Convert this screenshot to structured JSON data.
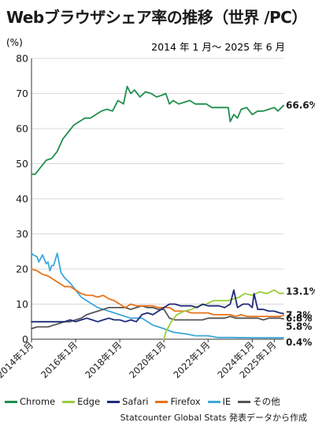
{
  "title": "Webブラウザシェア率の推移（世界 /PC）",
  "source": "Statcounter Global Stats 発表データから作成",
  "chart_data": {
    "type": "line",
    "title": "Webブラウザシェア率の推移（世界 /PC）",
    "subtitle": "2014 年 1 月〜 2025 年 6 月",
    "ylabel": "(%)",
    "ylim": [
      0,
      80
    ],
    "yticks": [
      "0",
      "10",
      "20",
      "30",
      "40",
      "50",
      "60",
      "70",
      "80"
    ],
    "xlim": [
      "2014-01",
      "2025-06"
    ],
    "xticks": [
      {
        "x": "2014-01",
        "label": "2014年1月"
      },
      {
        "x": "2016-01",
        "label": "2016年1月"
      },
      {
        "x": "2018-01",
        "label": "2018年1月"
      },
      {
        "x": "2020-01",
        "label": "2020年1月"
      },
      {
        "x": "2022-01",
        "label": "2022年1月"
      },
      {
        "x": "2024-01",
        "label": "2024年1月"
      },
      {
        "x": "2025-01",
        "label": "2025年1月"
      }
    ],
    "grid": "horizontal",
    "legend": "bottom",
    "series": [
      {
        "name": "Chrome",
        "color": "#1f8f4e",
        "end_label": "66.6%",
        "points": [
          [
            "2014-01",
            47
          ],
          [
            "2014-03",
            47
          ],
          [
            "2014-06",
            49
          ],
          [
            "2014-09",
            51
          ],
          [
            "2014-12",
            51.5
          ],
          [
            "2015-03",
            53.5
          ],
          [
            "2015-06",
            57
          ],
          [
            "2015-09",
            59
          ],
          [
            "2015-12",
            61
          ],
          [
            "2016-03",
            62
          ],
          [
            "2016-06",
            63
          ],
          [
            "2016-09",
            63
          ],
          [
            "2016-12",
            64
          ],
          [
            "2017-03",
            65
          ],
          [
            "2017-06",
            65.5
          ],
          [
            "2017-09",
            65
          ],
          [
            "2017-12",
            68
          ],
          [
            "2018-03",
            67
          ],
          [
            "2018-05",
            72
          ],
          [
            "2018-07",
            70
          ],
          [
            "2018-09",
            71
          ],
          [
            "2018-12",
            69
          ],
          [
            "2019-03",
            70.5
          ],
          [
            "2019-06",
            70
          ],
          [
            "2019-09",
            69
          ],
          [
            "2019-12",
            69.5
          ],
          [
            "2020-02",
            70
          ],
          [
            "2020-04",
            67
          ],
          [
            "2020-06",
            68
          ],
          [
            "2020-09",
            67
          ],
          [
            "2020-12",
            67.5
          ],
          [
            "2021-03",
            68
          ],
          [
            "2021-06",
            67
          ],
          [
            "2021-09",
            67
          ],
          [
            "2021-12",
            67
          ],
          [
            "2022-03",
            66
          ],
          [
            "2022-06",
            66
          ],
          [
            "2022-09",
            66
          ],
          [
            "2022-12",
            66
          ],
          [
            "2023-01",
            62
          ],
          [
            "2023-03",
            64
          ],
          [
            "2023-05",
            63
          ],
          [
            "2023-07",
            65.5
          ],
          [
            "2023-10",
            66
          ],
          [
            "2024-01",
            64
          ],
          [
            "2024-04",
            65
          ],
          [
            "2024-07",
            65
          ],
          [
            "2024-10",
            65.5
          ],
          [
            "2025-01",
            66
          ],
          [
            "2025-03",
            65
          ],
          [
            "2025-06",
            66.6
          ]
        ]
      },
      {
        "name": "Edge",
        "color": "#9ccc3c",
        "end_label": "13.1%",
        "points": [
          [
            "2020-01",
            0
          ],
          [
            "2020-02",
            2
          ],
          [
            "2020-05",
            5
          ],
          [
            "2020-08",
            7
          ],
          [
            "2020-12",
            8
          ],
          [
            "2021-04",
            8.5
          ],
          [
            "2021-08",
            9.5
          ],
          [
            "2021-12",
            10
          ],
          [
            "2022-04",
            11
          ],
          [
            "2022-09",
            11
          ],
          [
            "2022-12",
            11
          ],
          [
            "2023-03",
            11.5
          ],
          [
            "2023-06",
            12
          ],
          [
            "2023-09",
            13
          ],
          [
            "2024-01",
            12.5
          ],
          [
            "2024-05",
            13.5
          ],
          [
            "2024-09",
            13
          ],
          [
            "2025-01",
            14
          ],
          [
            "2025-04",
            13
          ],
          [
            "2025-06",
            13.1
          ]
        ]
      },
      {
        "name": "Safari",
        "color": "#1f2a7a",
        "end_label": "7.3%",
        "points": [
          [
            "2014-01",
            5
          ],
          [
            "2014-04",
            5
          ],
          [
            "2014-07",
            5
          ],
          [
            "2014-10",
            5
          ],
          [
            "2015-01",
            5
          ],
          [
            "2015-04",
            5
          ],
          [
            "2015-07",
            5
          ],
          [
            "2015-10",
            5.5
          ],
          [
            "2016-01",
            5
          ],
          [
            "2016-04",
            5.5
          ],
          [
            "2016-07",
            6
          ],
          [
            "2016-10",
            5.5
          ],
          [
            "2017-01",
            5
          ],
          [
            "2017-04",
            5.5
          ],
          [
            "2017-07",
            6
          ],
          [
            "2017-10",
            5.5
          ],
          [
            "2018-01",
            5.5
          ],
          [
            "2018-04",
            5
          ],
          [
            "2018-07",
            5.5
          ],
          [
            "2018-10",
            5
          ],
          [
            "2019-01",
            7
          ],
          [
            "2019-04",
            7.5
          ],
          [
            "2019-07",
            7
          ],
          [
            "2019-10",
            8
          ],
          [
            "2020-01",
            9
          ],
          [
            "2020-04",
            10
          ],
          [
            "2020-07",
            10
          ],
          [
            "2020-10",
            9.5
          ],
          [
            "2021-01",
            9.5
          ],
          [
            "2021-04",
            9.5
          ],
          [
            "2021-07",
            9
          ],
          [
            "2021-10",
            10
          ],
          [
            "2022-01",
            9.5
          ],
          [
            "2022-04",
            9.5
          ],
          [
            "2022-07",
            9.5
          ],
          [
            "2022-10",
            9
          ],
          [
            "2023-01",
            10
          ],
          [
            "2023-03",
            14
          ],
          [
            "2023-05",
            9
          ],
          [
            "2023-08",
            10
          ],
          [
            "2023-11",
            10
          ],
          [
            "2024-01",
            9
          ],
          [
            "2024-02",
            13
          ],
          [
            "2024-04",
            8.5
          ],
          [
            "2024-07",
            8.5
          ],
          [
            "2024-10",
            8
          ],
          [
            "2025-01",
            8
          ],
          [
            "2025-04",
            7.5
          ],
          [
            "2025-06",
            7.3
          ]
        ]
      },
      {
        "name": "Firefox",
        "color": "#e8731a",
        "end_label": "6.8%",
        "points": [
          [
            "2014-01",
            20
          ],
          [
            "2014-04",
            19.5
          ],
          [
            "2014-07",
            18.5
          ],
          [
            "2014-10",
            18
          ],
          [
            "2015-01",
            17
          ],
          [
            "2015-04",
            16
          ],
          [
            "2015-07",
            15
          ],
          [
            "2015-10",
            15
          ],
          [
            "2016-01",
            14
          ],
          [
            "2016-04",
            13
          ],
          [
            "2016-07",
            12.5
          ],
          [
            "2016-10",
            12.5
          ],
          [
            "2017-01",
            12
          ],
          [
            "2017-04",
            12.5
          ],
          [
            "2017-07",
            11.5
          ],
          [
            "2017-10",
            11
          ],
          [
            "2018-01",
            10
          ],
          [
            "2018-04",
            9
          ],
          [
            "2018-07",
            10
          ],
          [
            "2018-10",
            9.5
          ],
          [
            "2019-01",
            9.5
          ],
          [
            "2019-04",
            9.5
          ],
          [
            "2019-07",
            9.5
          ],
          [
            "2019-10",
            9
          ],
          [
            "2020-01",
            9
          ],
          [
            "2020-04",
            9
          ],
          [
            "2020-07",
            8
          ],
          [
            "2020-10",
            8
          ],
          [
            "2021-01",
            8
          ],
          [
            "2021-04",
            7.5
          ],
          [
            "2021-07",
            7.5
          ],
          [
            "2021-10",
            7.5
          ],
          [
            "2022-01",
            7.5
          ],
          [
            "2022-04",
            7
          ],
          [
            "2022-07",
            7
          ],
          [
            "2022-10",
            7
          ],
          [
            "2023-01",
            7
          ],
          [
            "2023-04",
            6.5
          ],
          [
            "2023-07",
            7
          ],
          [
            "2023-10",
            6.5
          ],
          [
            "2024-01",
            6.5
          ],
          [
            "2024-04",
            6.5
          ],
          [
            "2024-07",
            6.5
          ],
          [
            "2024-10",
            6.5
          ],
          [
            "2025-01",
            6.5
          ],
          [
            "2025-04",
            6.5
          ],
          [
            "2025-06",
            6.8
          ]
        ]
      },
      {
        "name": "IE",
        "color": "#3fa8d8",
        "end_label": "0.4%",
        "points": [
          [
            "2014-01",
            24.5
          ],
          [
            "2014-02",
            24
          ],
          [
            "2014-04",
            23.5
          ],
          [
            "2014-05",
            22
          ],
          [
            "2014-07",
            24
          ],
          [
            "2014-09",
            21.5
          ],
          [
            "2014-10",
            22
          ],
          [
            "2014-11",
            19.5
          ],
          [
            "2014-12",
            21
          ],
          [
            "2015-01",
            21
          ],
          [
            "2015-03",
            24.5
          ],
          [
            "2015-05",
            19
          ],
          [
            "2015-07",
            17.5
          ],
          [
            "2015-10",
            16
          ],
          [
            "2016-01",
            14
          ],
          [
            "2016-04",
            12
          ],
          [
            "2016-07",
            11
          ],
          [
            "2016-10",
            10
          ],
          [
            "2017-01",
            9
          ],
          [
            "2017-04",
            8.5
          ],
          [
            "2017-07",
            8
          ],
          [
            "2017-10",
            7.5
          ],
          [
            "2018-01",
            7
          ],
          [
            "2018-04",
            6.5
          ],
          [
            "2018-07",
            6
          ],
          [
            "2018-10",
            6
          ],
          [
            "2019-01",
            6
          ],
          [
            "2019-04",
            5
          ],
          [
            "2019-07",
            4
          ],
          [
            "2019-10",
            3.5
          ],
          [
            "2020-01",
            3
          ],
          [
            "2020-06",
            2
          ],
          [
            "2021-01",
            1.5
          ],
          [
            "2021-06",
            1
          ],
          [
            "2022-01",
            1
          ],
          [
            "2022-06",
            0.5
          ],
          [
            "2023-01",
            0.5
          ],
          [
            "2024-01",
            0.4
          ],
          [
            "2025-06",
            0.4
          ]
        ]
      },
      {
        "name": "その他",
        "color": "#555555",
        "end_label": "5.8%",
        "points": [
          [
            "2014-01",
            3
          ],
          [
            "2014-04",
            3.5
          ],
          [
            "2014-07",
            3.5
          ],
          [
            "2014-10",
            3.5
          ],
          [
            "2015-01",
            4
          ],
          [
            "2015-04",
            4.5
          ],
          [
            "2015-07",
            5
          ],
          [
            "2015-10",
            5
          ],
          [
            "2016-01",
            5.5
          ],
          [
            "2016-04",
            6
          ],
          [
            "2016-07",
            7
          ],
          [
            "2016-10",
            7.5
          ],
          [
            "2017-01",
            8
          ],
          [
            "2017-04",
            8.5
          ],
          [
            "2017-07",
            9
          ],
          [
            "2017-10",
            9
          ],
          [
            "2018-01",
            9
          ],
          [
            "2018-04",
            9
          ],
          [
            "2018-07",
            8.5
          ],
          [
            "2018-10",
            9
          ],
          [
            "2019-01",
            9.5
          ],
          [
            "2019-04",
            9
          ],
          [
            "2019-07",
            9
          ],
          [
            "2019-10",
            8.5
          ],
          [
            "2020-01",
            8.5
          ],
          [
            "2020-04",
            6
          ],
          [
            "2020-07",
            5.5
          ],
          [
            "2020-10",
            5.5
          ],
          [
            "2021-01",
            5.5
          ],
          [
            "2021-04",
            5.5
          ],
          [
            "2021-07",
            5.5
          ],
          [
            "2021-10",
            5.5
          ],
          [
            "2022-01",
            6
          ],
          [
            "2022-04",
            6
          ],
          [
            "2022-07",
            6
          ],
          [
            "2022-10",
            6
          ],
          [
            "2023-01",
            6.5
          ],
          [
            "2023-04",
            6
          ],
          [
            "2023-07",
            6
          ],
          [
            "2023-10",
            6
          ],
          [
            "2024-01",
            6
          ],
          [
            "2024-04",
            6
          ],
          [
            "2024-07",
            5.5
          ],
          [
            "2024-10",
            6
          ],
          [
            "2025-01",
            6
          ],
          [
            "2025-04",
            6
          ],
          [
            "2025-06",
            5.8
          ]
        ]
      }
    ]
  }
}
